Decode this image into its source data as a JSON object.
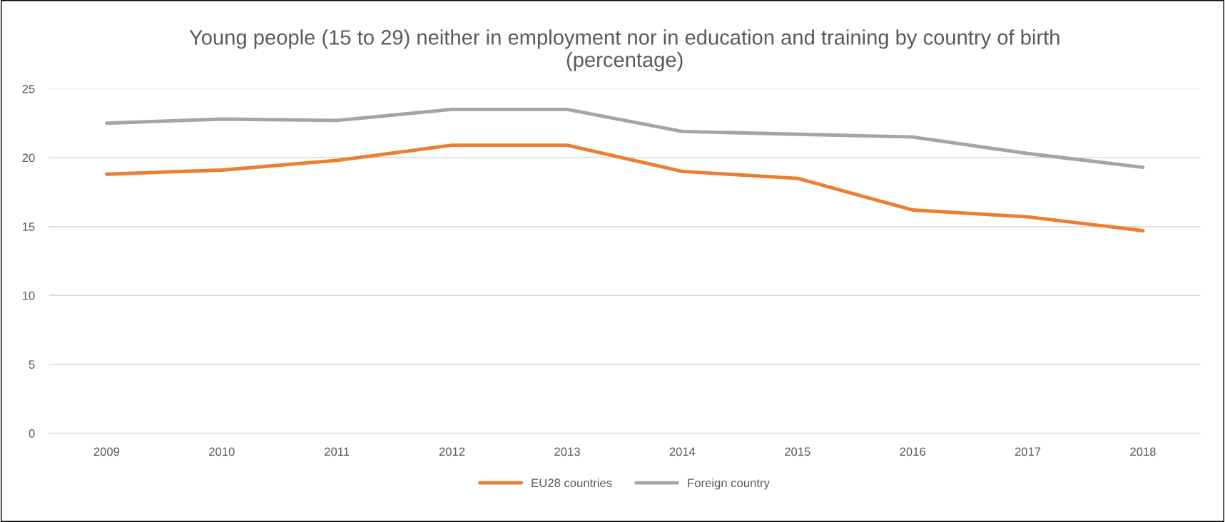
{
  "chart_data": {
    "type": "line",
    "title": "Young people (15 to 29) neither in employment nor in education and training by country of birth\n(percentage)",
    "categories": [
      "2009",
      "2010",
      "2011",
      "2012",
      "2013",
      "2014",
      "2015",
      "2016",
      "2017",
      "2018"
    ],
    "series": [
      {
        "name": "EU28 countries",
        "color": "#ed7d31",
        "values": [
          18.8,
          19.1,
          19.8,
          20.9,
          20.9,
          19.0,
          18.5,
          16.2,
          15.7,
          14.7
        ]
      },
      {
        "name": "Foreign country",
        "color": "#a5a5a5",
        "values": [
          22.5,
          22.8,
          22.7,
          23.5,
          23.5,
          21.9,
          21.7,
          21.5,
          20.3,
          19.3
        ]
      }
    ],
    "ylim": [
      0,
      25
    ],
    "yticks": [
      0,
      5,
      10,
      15,
      20,
      25
    ],
    "grid": "y",
    "legend": "bottom",
    "marker": "none",
    "line_style": "solid"
  }
}
